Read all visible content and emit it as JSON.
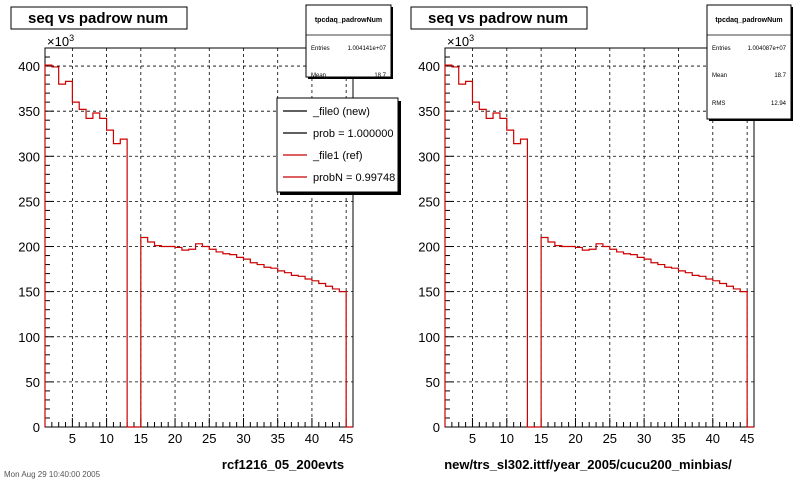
{
  "chart_data": [
    {
      "type": "line",
      "title": "seq vs padrow num",
      "xlabel": "rcf1216_05_200evts",
      "ylabel": "",
      "y_multiplier": "×10",
      "y_multiplier_exp": "3",
      "xlim": [
        1,
        46
      ],
      "ylim": [
        0,
        420
      ],
      "x_ticks": [
        5,
        10,
        15,
        20,
        25,
        30,
        35,
        40,
        45
      ],
      "y_ticks": [
        0,
        50,
        100,
        150,
        200,
        250,
        300,
        350,
        400
      ],
      "grid": true,
      "stats_box": {
        "title": "tpcdaq_padrowNum",
        "entries_label": "Entries",
        "entries_value": "1.004141e+07",
        "mean_label": "Mean",
        "mean_value": "18.7"
      },
      "legend": {
        "position": "top-right",
        "entries": [
          {
            "label": "_file0 (new)",
            "color": "#000000"
          },
          {
            "label": "prob = 1.000000",
            "color": "#000000"
          },
          {
            "label": "_file1 (ref)",
            "color": "#cc0000"
          },
          {
            "label": "probN = 0.99748",
            "color": "#cc0000"
          }
        ]
      },
      "series": [
        {
          "color": "#cc0000",
          "x": [
            1,
            2,
            3,
            4,
            5,
            6,
            7,
            8,
            9,
            10,
            11,
            12,
            13,
            14,
            15,
            16,
            17,
            18,
            19,
            20,
            21,
            22,
            23,
            24,
            25,
            26,
            27,
            28,
            29,
            30,
            31,
            32,
            33,
            34,
            35,
            36,
            37,
            38,
            39,
            40,
            41,
            42,
            43,
            44,
            45
          ],
          "values": [
            401,
            399,
            380,
            383,
            360,
            352,
            342,
            348,
            342,
            329,
            314,
            319,
            0,
            0,
            210,
            205,
            201,
            200,
            200,
            199,
            196,
            197,
            203,
            200,
            197,
            194,
            192,
            191,
            188,
            186,
            182,
            180,
            177,
            176,
            173,
            171,
            168,
            167,
            164,
            162,
            159,
            156,
            153,
            150,
            0
          ]
        }
      ]
    },
    {
      "type": "line",
      "title": "seq vs padrow num",
      "xlabel": "new/trs_sl302.ittf/year_2005/cucu200_minbias/",
      "ylabel": "",
      "y_multiplier": "×10",
      "y_multiplier_exp": "3",
      "xlim": [
        1,
        46
      ],
      "ylim": [
        0,
        420
      ],
      "x_ticks": [
        5,
        10,
        15,
        20,
        25,
        30,
        35,
        40,
        45
      ],
      "y_ticks": [
        0,
        50,
        100,
        150,
        200,
        250,
        300,
        350,
        400
      ],
      "grid": true,
      "stats_box": {
        "title": "tpcdaq_padrowNum",
        "entries_label": "Entries",
        "entries_value": "1.004087e+07",
        "mean_label": "Mean",
        "mean_value": "18.7",
        "rms_label": "RMS",
        "rms_value": "12.94"
      },
      "series": [
        {
          "color": "#cc0000",
          "x": [
            1,
            2,
            3,
            4,
            5,
            6,
            7,
            8,
            9,
            10,
            11,
            12,
            13,
            14,
            15,
            16,
            17,
            18,
            19,
            20,
            21,
            22,
            23,
            24,
            25,
            26,
            27,
            28,
            29,
            30,
            31,
            32,
            33,
            34,
            35,
            36,
            37,
            38,
            39,
            40,
            41,
            42,
            43,
            44,
            45
          ],
          "values": [
            401,
            399,
            380,
            383,
            360,
            352,
            342,
            348,
            342,
            329,
            314,
            319,
            0,
            0,
            210,
            205,
            201,
            200,
            200,
            199,
            196,
            197,
            203,
            200,
            197,
            194,
            192,
            191,
            188,
            186,
            182,
            180,
            177,
            176,
            173,
            171,
            168,
            167,
            164,
            162,
            159,
            156,
            153,
            150,
            0
          ]
        }
      ]
    }
  ],
  "footer_text": "Mon Aug 29 10:40:00 2005"
}
